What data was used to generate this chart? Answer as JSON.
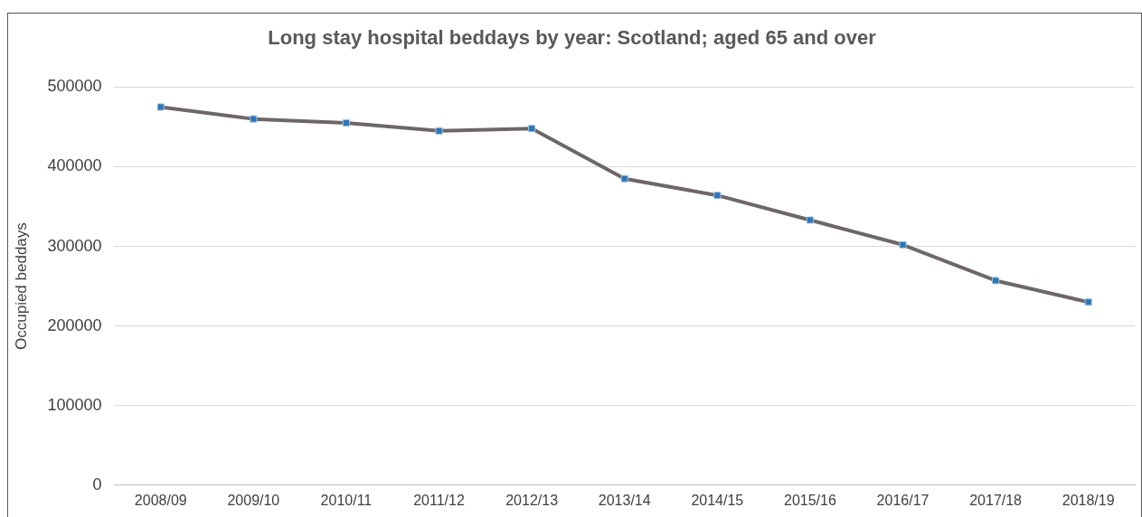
{
  "chart_data": {
    "type": "line",
    "title": "Long stay hospital beddays by year: Scotland; aged 65 and over",
    "ylabel": "Occupied beddays",
    "categories": [
      "2008/09",
      "2009/10",
      "2010/11",
      "2011/12",
      "2012/13",
      "2013/14",
      "2014/15",
      "2015/16",
      "2016/17",
      "2017/18",
      "2018/19"
    ],
    "series": [
      {
        "color": "#6e6767",
        "values": [
          475000,
          460000,
          455000,
          445000,
          448000,
          385000,
          364000,
          333000,
          302000,
          257000,
          230000
        ]
      }
    ],
    "ylim": [
      0,
      500000
    ],
    "yticks": [
      0,
      100000,
      200000,
      300000,
      400000,
      500000
    ],
    "grid": "y",
    "legend": false,
    "marker": "square",
    "line_style": "solid"
  }
}
